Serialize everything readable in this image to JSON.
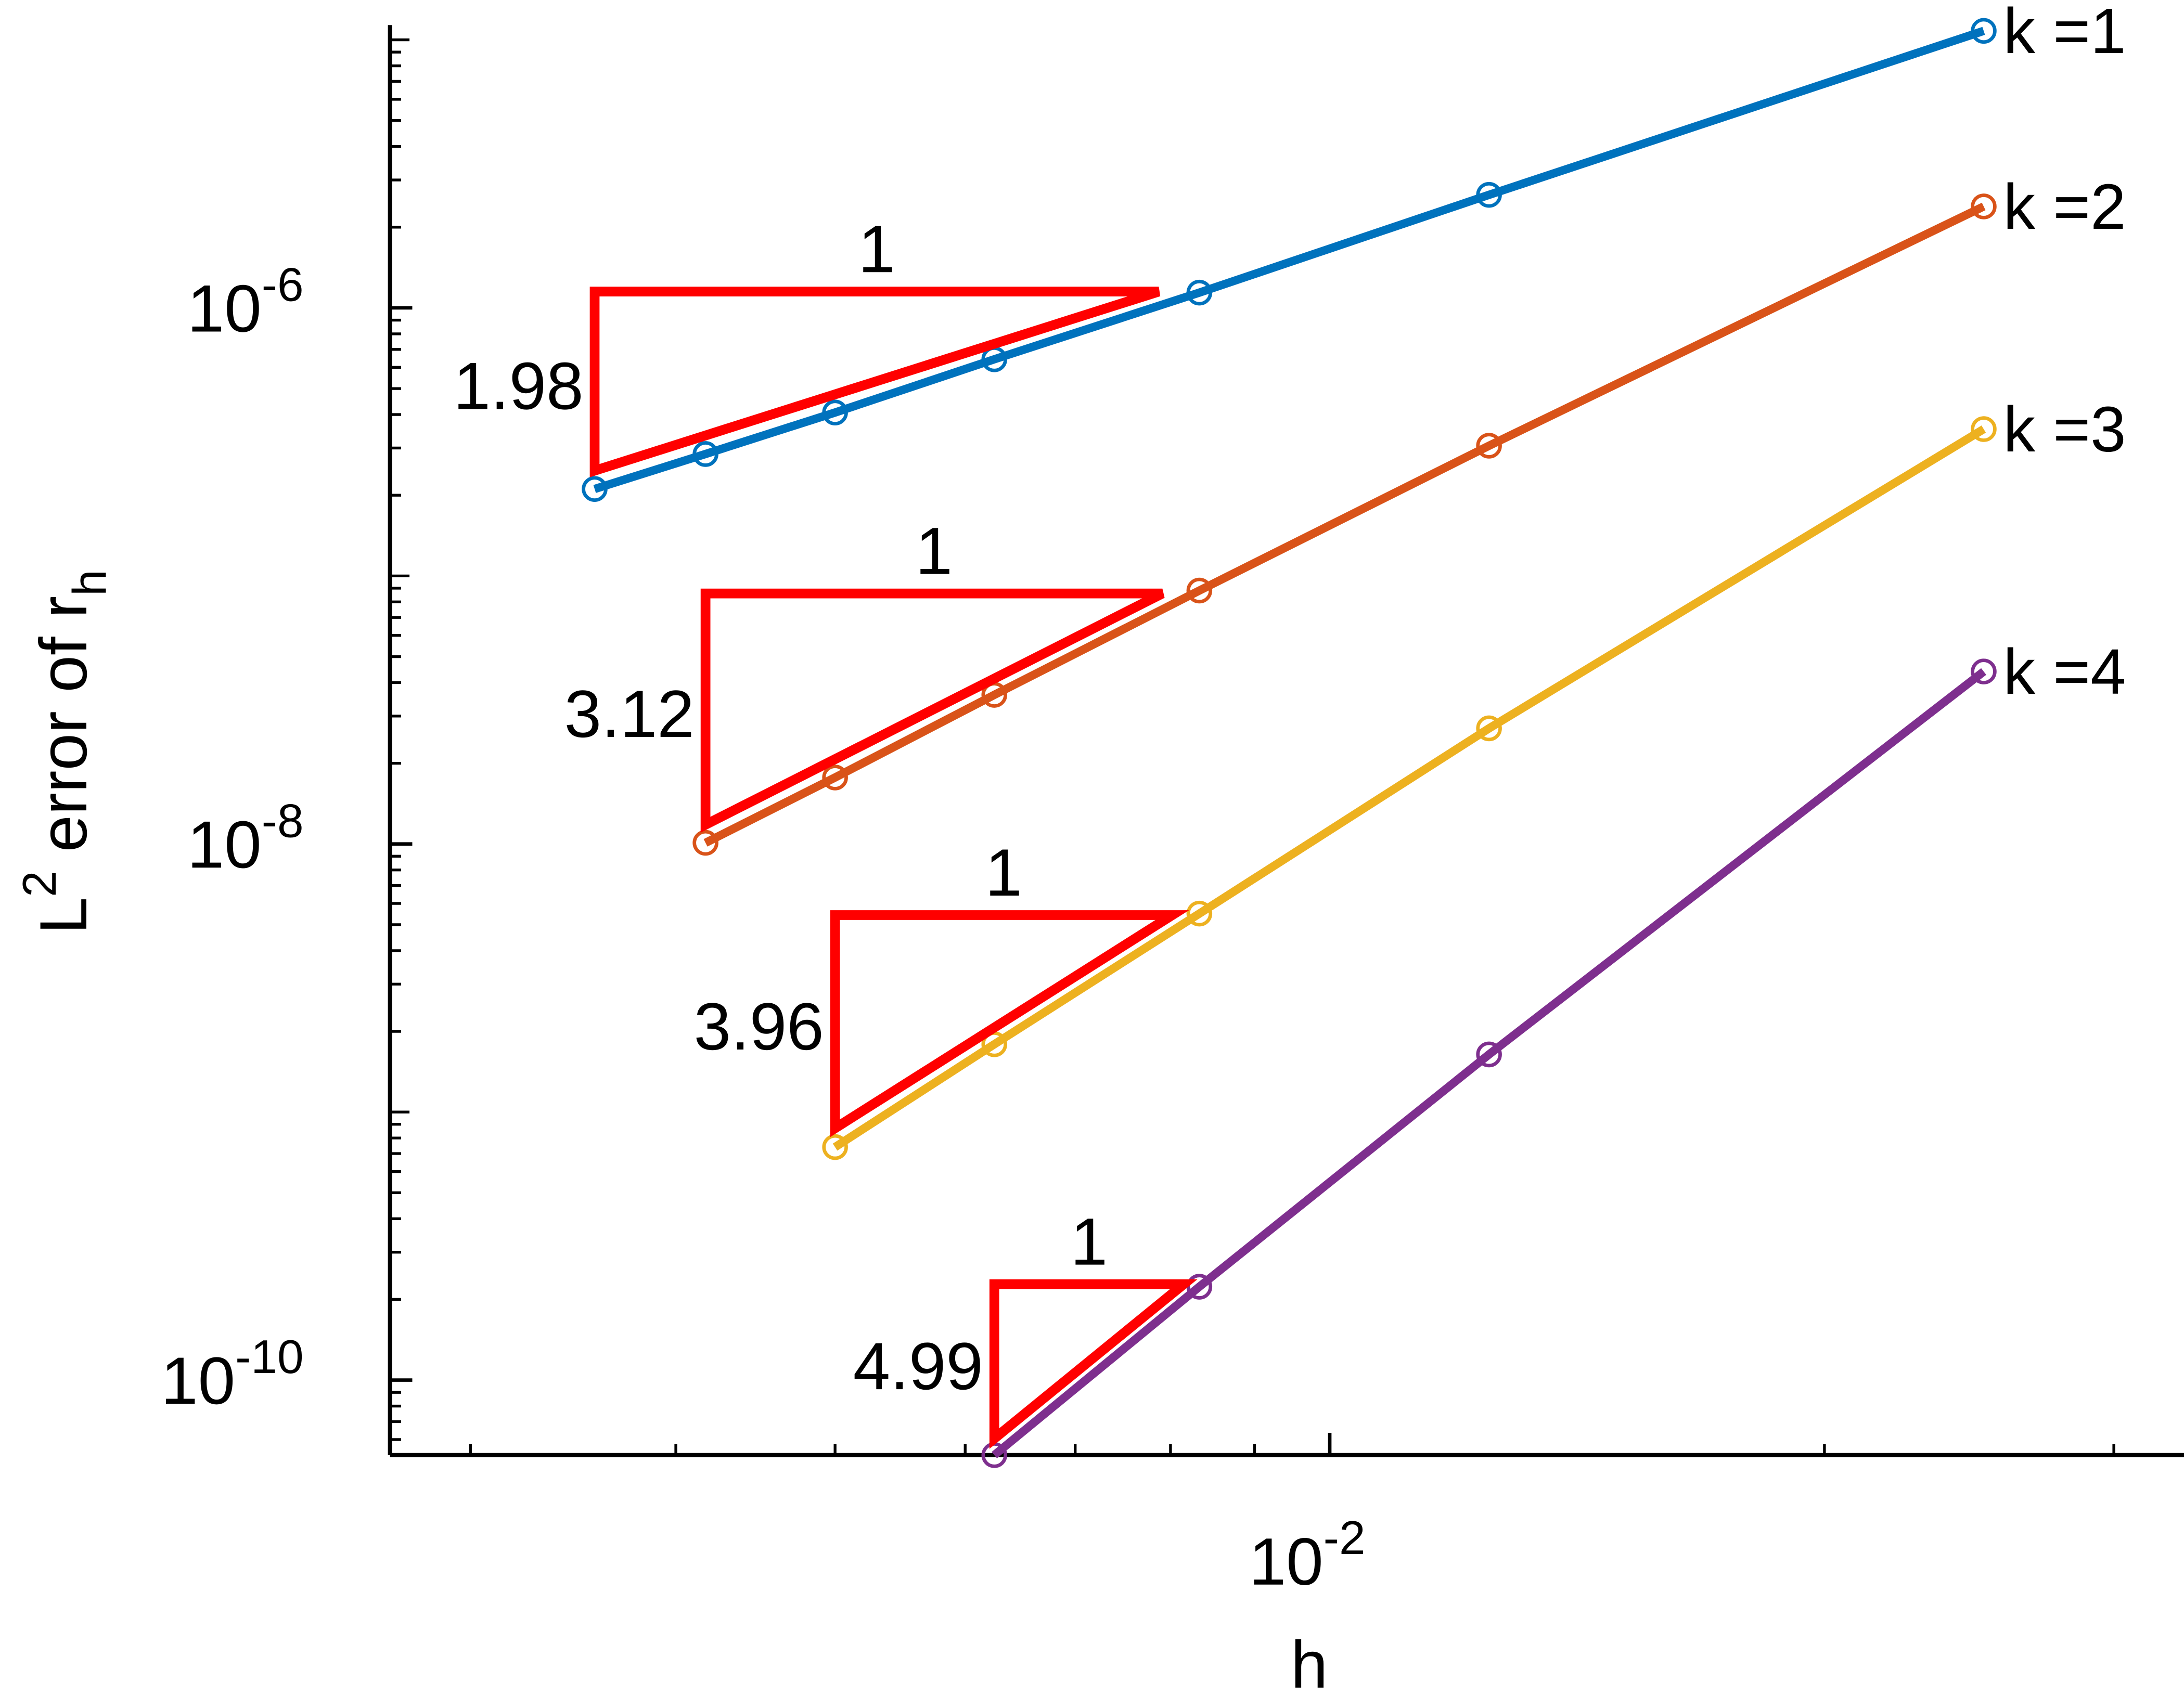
{
  "chart_data": {
    "type": "line",
    "xlabel": "h",
    "ylabel": {
      "text": "L",
      "sup": "2",
      "mid": " error of r",
      "sub": "h"
    },
    "log_x": true,
    "log_y": true,
    "minor_ticks": true,
    "grid": false,
    "x": [
      0.00357,
      0.00417,
      0.005,
      0.00625,
      0.00833,
      0.0125,
      0.025
    ],
    "xlim": [
      0.00268,
      0.0331
    ],
    "ylim": [
      5.25e-11,
      1.135e-05
    ],
    "xticks": [
      {
        "value": 0.01,
        "label": "10",
        "exponent": "-2"
      }
    ],
    "yticks": [
      {
        "value": 1e-10,
        "label": "10",
        "exponent": "-10"
      },
      {
        "value": 1e-08,
        "label": "10",
        "exponent": "-8"
      },
      {
        "value": 1e-06,
        "label": "10",
        "exponent": "-6"
      }
    ],
    "series": [
      {
        "name": "k =1",
        "color": "#0072bd",
        "values": [
          2.11e-07,
          2.85e-07,
          4.07e-07,
          6.43e-07,
          1.14e-06,
          2.64e-06,
          1.08e-05
        ]
      },
      {
        "name": "k =2",
        "color": "#d95319",
        "values": [
          null,
          1.01e-08,
          1.77e-08,
          3.6e-08,
          8.82e-08,
          3.06e-07,
          2.39e-06
        ]
      },
      {
        "name": "k =3",
        "color": "#edb120",
        "values": [
          null,
          null,
          7.4e-10,
          1.79e-09,
          5.5e-09,
          2.7e-08,
          3.53e-07
        ]
      },
      {
        "name": "k =4",
        "color": "#7e2f8e",
        "values": [
          null,
          null,
          null,
          5.25e-11,
          2.23e-10,
          1.64e-09,
          4.4e-08
        ]
      }
    ],
    "triangle_color": "#ff0000",
    "triangles": [
      {
        "x": [
          0.00357,
          0.00787
        ],
        "y": [
          2.47e-07,
          1.15e-06
        ],
        "run_label": "1",
        "slope_label": "1.98"
      },
      {
        "x": [
          0.00417,
          0.00791
        ],
        "y": [
          1.18e-08,
          8.6e-08
        ],
        "run_label": "1",
        "slope_label": "3.12"
      },
      {
        "x": [
          0.005,
          0.00802
        ],
        "y": [
          8.7e-10,
          5.43e-09
        ],
        "run_label": "1",
        "slope_label": "3.96"
      },
      {
        "x": [
          0.00625,
          0.00815
        ],
        "y": [
          6.05e-11,
          2.28e-10
        ],
        "run_label": "1",
        "slope_label": "4.99"
      }
    ]
  }
}
